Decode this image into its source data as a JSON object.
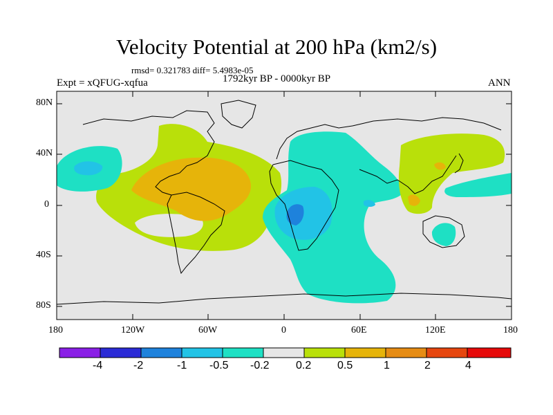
{
  "title": "Velocity Potential at 200 hPa (km2/s)",
  "stats_line": "rmsd= 0.321783 diff= 5.4983e-05",
  "period_label": "1792kyr BP - 0000kyr BP",
  "experiment_label": "Expt = xQFUG-xqfua",
  "season_label": "ANN",
  "lat_labels": [
    "80N",
    "40N",
    "0",
    "40S",
    "80S"
  ],
  "lon_labels": [
    "180",
    "120W",
    "60W",
    "0",
    "60E",
    "120E",
    "180"
  ],
  "colorbar": {
    "labels": [
      "-4",
      "-2",
      "-1",
      "-0.5",
      "-0.2",
      "0.2",
      "0.5",
      "1",
      "2",
      "4"
    ],
    "colors": [
      "#8a1fe6",
      "#2b2bd6",
      "#1e82dc",
      "#22c3e6",
      "#1ee0c4",
      "#e6e6e6",
      "#b9e00a",
      "#e6b40a",
      "#e68c14",
      "#e6460f",
      "#e60a0a"
    ]
  },
  "colors": {
    "neutral": "#e6e6e6",
    "cyan": "#1ee0c4",
    "lightblue": "#22c3e6",
    "blue": "#1e82dc",
    "yellowgreen": "#b9e00a",
    "orange": "#e6b40a",
    "darkorange": "#e68c14",
    "red": "#e6460f"
  }
}
